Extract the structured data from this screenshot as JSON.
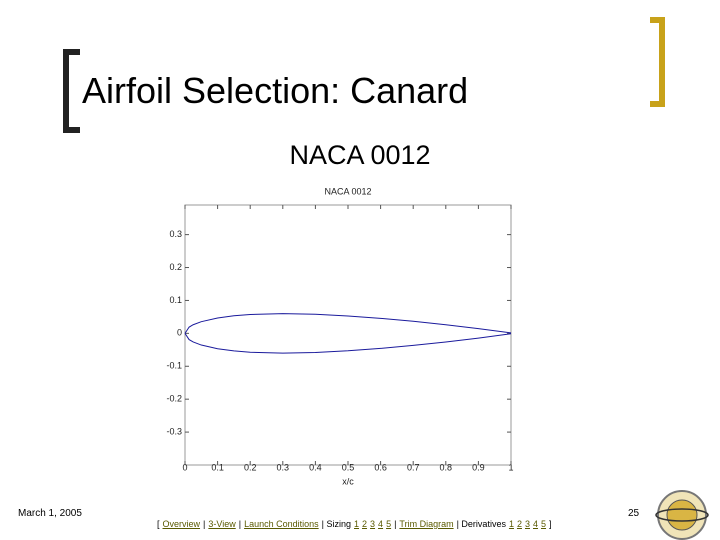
{
  "slide": {
    "title": "Airfoil Selection: Canard",
    "subtitle": "NACA 0012",
    "date": "March 1, 2005",
    "page": "25",
    "nav": [
      {
        "text": "[",
        "link": false
      },
      {
        "text": "Overview",
        "link": true
      },
      {
        "text": "|",
        "link": false
      },
      {
        "text": "3-View",
        "link": true
      },
      {
        "text": "|",
        "link": false
      },
      {
        "text": "Launch Conditions",
        "link": true
      },
      {
        "text": "| Sizing",
        "link": false
      },
      {
        "text": "1",
        "link": true
      },
      {
        "text": "2",
        "link": true
      },
      {
        "text": "3",
        "link": true
      },
      {
        "text": "4",
        "link": true
      },
      {
        "text": "5",
        "link": true
      },
      {
        "text": "|",
        "link": false
      },
      {
        "text": "Trim Diagram",
        "link": true
      },
      {
        "text": "| Derivatives",
        "link": false
      },
      {
        "text": "1",
        "link": true
      },
      {
        "text": "2",
        "link": true
      },
      {
        "text": "3",
        "link": true
      },
      {
        "text": "4",
        "link": true
      },
      {
        "text": "5",
        "link": true
      },
      {
        "text": "]",
        "link": false
      }
    ]
  },
  "chart_data": {
    "type": "line",
    "title": "NACA 0012",
    "x_label": "x/c",
    "x": [
      0,
      0.0125,
      0.025,
      0.05,
      0.1,
      0.15,
      0.2,
      0.3,
      0.4,
      0.5,
      0.6,
      0.7,
      0.8,
      0.9,
      1.0
    ],
    "series": [
      {
        "color": "#1a1a9c",
        "values": [
          0,
          0.0189,
          0.0262,
          0.0355,
          0.0468,
          0.0534,
          0.0574,
          0.06,
          0.058,
          0.0529,
          0.0456,
          0.0366,
          0.0262,
          0.0145,
          0.0013
        ]
      },
      {
        "color": "#1a1a9c",
        "values": [
          0,
          -0.0189,
          -0.0262,
          -0.0355,
          -0.0468,
          -0.0534,
          -0.0574,
          -0.06,
          -0.058,
          -0.0529,
          -0.0456,
          -0.0366,
          -0.0262,
          -0.0145,
          -0.0013
        ]
      }
    ],
    "xlim": [
      0,
      1
    ],
    "xticks": [
      0,
      0.1,
      0.2,
      0.3,
      0.4,
      0.5,
      0.6,
      0.7,
      0.8,
      0.9,
      1
    ],
    "ylim": [
      -0.4,
      0.39
    ],
    "yticks": [
      -0.3,
      -0.2,
      -0.1,
      0,
      0.1,
      0.2,
      0.3
    ]
  }
}
